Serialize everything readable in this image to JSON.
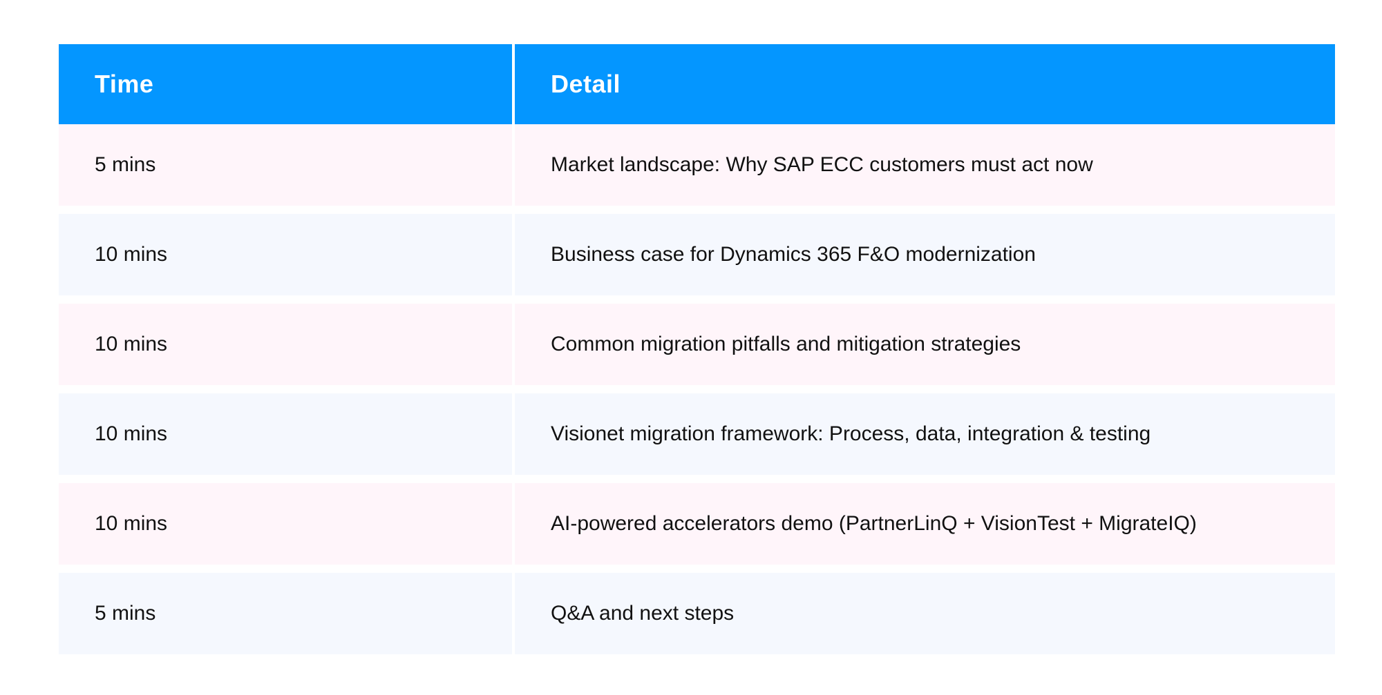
{
  "table": {
    "header": [
      "Time",
      "Detail"
    ],
    "rows": [
      [
        "5 mins",
        "Market landscape: Why SAP ECC customers must act now"
      ],
      [
        "10 mins",
        "Business case for Dynamics 365 F&O modernization"
      ],
      [
        "10 mins",
        "Common migration pitfalls and mitigation strategies"
      ],
      [
        "10 mins",
        "Visionet migration framework: Process, data, integration & testing"
      ],
      [
        "10 mins",
        "AI-powered accelerators demo (PartnerLinQ + VisionTest + MigrateIQ)"
      ],
      [
        "5 mins",
        "Q&A and next steps"
      ]
    ]
  }
}
